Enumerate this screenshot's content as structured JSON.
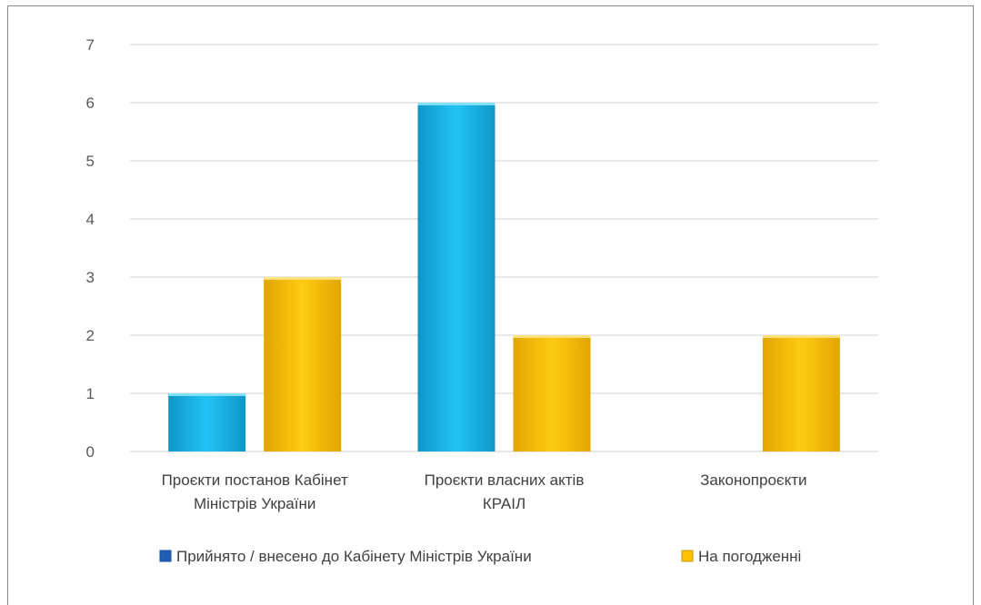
{
  "chart_data": {
    "type": "bar",
    "title": "",
    "xlabel": "",
    "ylabel": "",
    "ylim": [
      0,
      7
    ],
    "yticks": [
      0,
      1,
      2,
      3,
      4,
      5,
      6,
      7
    ],
    "grid": true,
    "legend_position": "bottom",
    "categories": [
      [
        "Проєкти постанов Кабінет",
        "Міністрів України"
      ],
      [
        "Проєкти власних актів",
        "КРАІЛ"
      ],
      [
        "Законопроєкти"
      ]
    ],
    "series": [
      {
        "name": "Прийнято / внесено до Кабінету Міністрів України",
        "color": "#1ab8ee",
        "legend_color": "#1f5fb4",
        "values": [
          1,
          6,
          0
        ]
      },
      {
        "name": "На погодженні",
        "color": "#ffc000",
        "legend_color": "#ffc000",
        "values": [
          3,
          2,
          2
        ]
      }
    ]
  }
}
